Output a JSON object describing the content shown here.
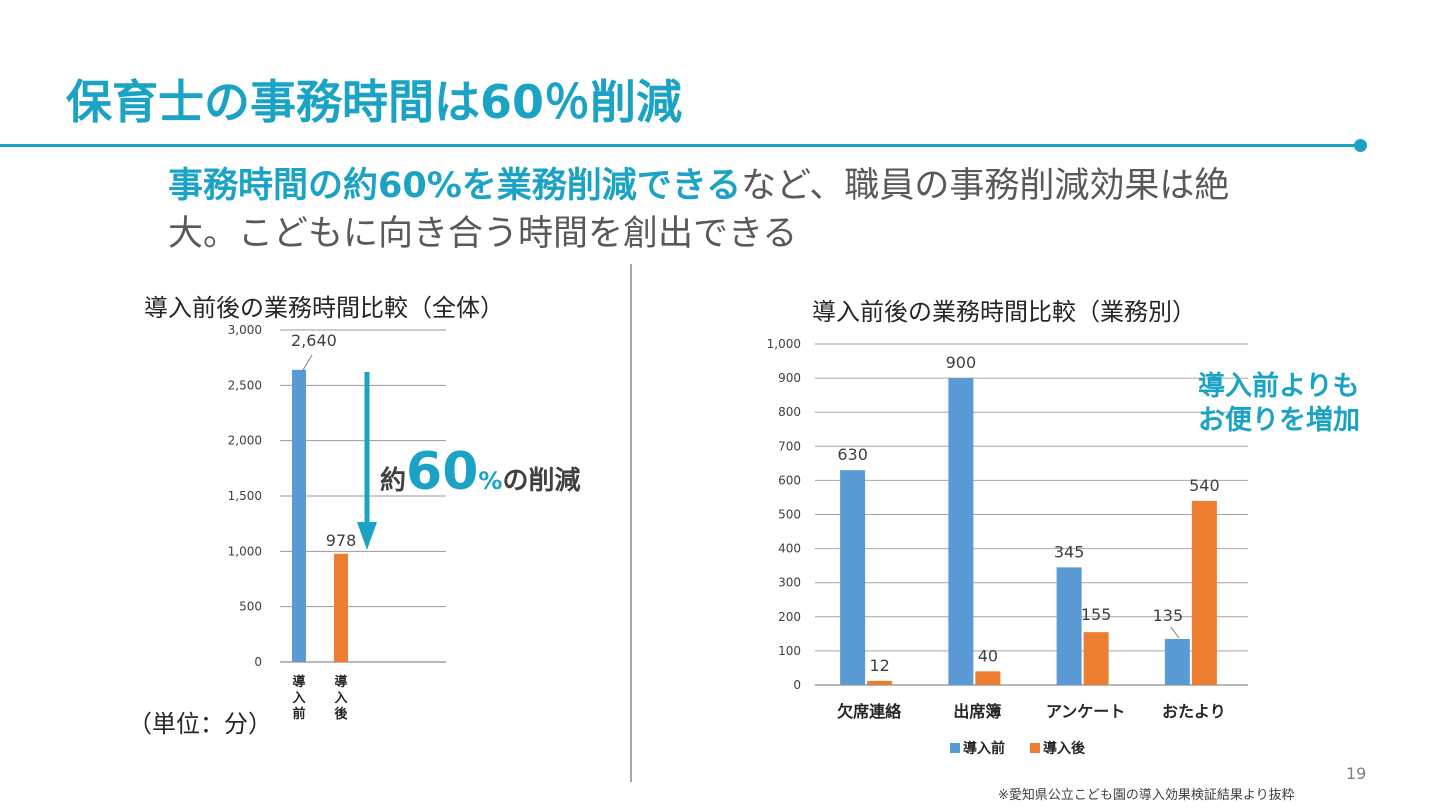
{
  "page": {
    "title": "保育士の事務時間は60％削減",
    "lead_highlight": "事務時間の約60%を業務削減できる",
    "lead_rest": "など、職員の事務削減効果は絶大。こどもに向き合う時間を創出できる",
    "page_number": "19",
    "source": "※愛知県公立こども園の導入効果検証結果より抜粋",
    "unit": "（単位：分）",
    "colors": {
      "accent": "#1aa3c4",
      "before": "#5b9bd5",
      "after": "#ed7d31"
    }
  },
  "reduction": {
    "prefix": "約",
    "number": "60",
    "percent": "%",
    "suffix": "の削減"
  },
  "note": {
    "line1": "導入前よりも",
    "line2": "お便りを増加"
  },
  "chart_data": [
    {
      "type": "bar",
      "title": "導入前後の業務時間比較（全体）",
      "categories": [
        "導入前",
        "導入後"
      ],
      "values": [
        2640,
        978
      ],
      "value_labels": [
        "2,640",
        "978"
      ],
      "ylim": [
        0,
        3000
      ],
      "yticks": [
        0,
        500,
        1000,
        1500,
        2000,
        2500,
        3000
      ],
      "ytick_labels": [
        "0",
        "500",
        "1,000",
        "1,500",
        "2,000",
        "2,500",
        "3,000"
      ],
      "grid": true
    },
    {
      "type": "bar",
      "title": "導入前後の業務時間比較（業務別）",
      "categories": [
        "欠席連絡",
        "出席簿",
        "アンケート",
        "おたより"
      ],
      "series": [
        {
          "name": "導入前",
          "values": [
            630,
            900,
            345,
            135
          ]
        },
        {
          "name": "導入後",
          "values": [
            12,
            40,
            155,
            540
          ]
        }
      ],
      "ylim": [
        0,
        1000
      ],
      "yticks": [
        0,
        100,
        200,
        300,
        400,
        500,
        600,
        700,
        800,
        900,
        1000
      ],
      "ytick_labels": [
        "0",
        "100",
        "200",
        "300",
        "400",
        "500",
        "600",
        "700",
        "800",
        "900",
        "1,000"
      ],
      "legend": "bottom",
      "grid": true
    }
  ]
}
